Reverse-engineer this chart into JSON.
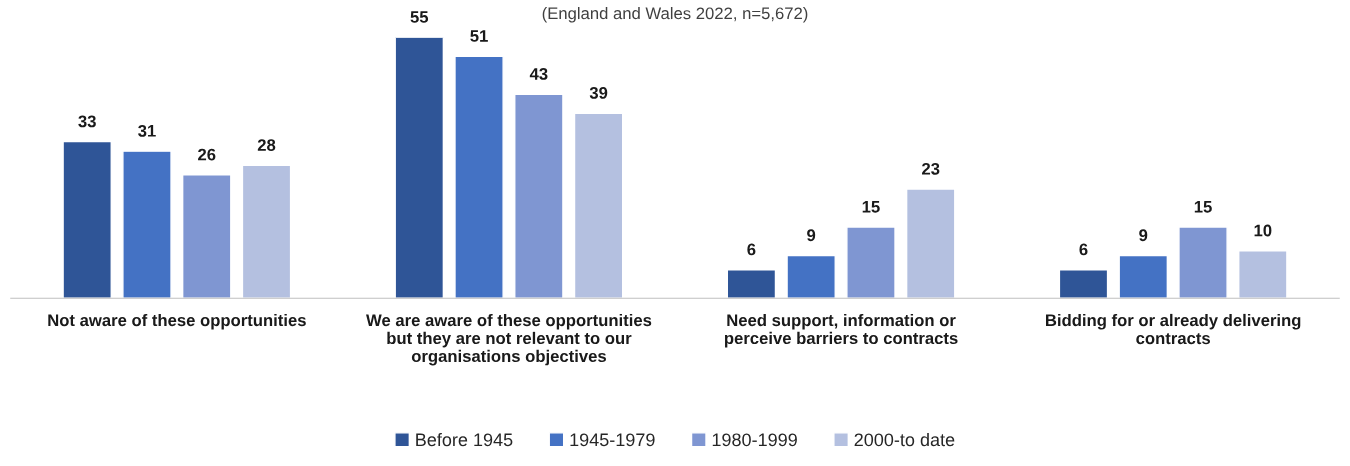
{
  "chart_data": {
    "type": "bar",
    "subtitle": "(England and Wales 2022, n=5,672)",
    "categories": [
      "Not aware of these opportunities",
      "We are aware of these opportunities but they are not relevant to our organisations objectives",
      "Need support, information or perceive barriers to contracts",
      "Bidding for or already delivering contracts"
    ],
    "series": [
      {
        "name": "Before 1945",
        "color": "#2f5597",
        "values": [
          33,
          55,
          6,
          6
        ]
      },
      {
        "name": "1945-1979",
        "color": "#4472c4",
        "values": [
          31,
          51,
          9,
          9
        ]
      },
      {
        "name": "1980-1999",
        "color": "#7f96d2",
        "values": [
          26,
          43,
          15,
          15
        ]
      },
      {
        "name": "2000-to date",
        "color": "#b4c0e0",
        "values": [
          28,
          39,
          23,
          10
        ]
      }
    ],
    "data_labels": true,
    "legend": "bottom",
    "grid": false
  }
}
